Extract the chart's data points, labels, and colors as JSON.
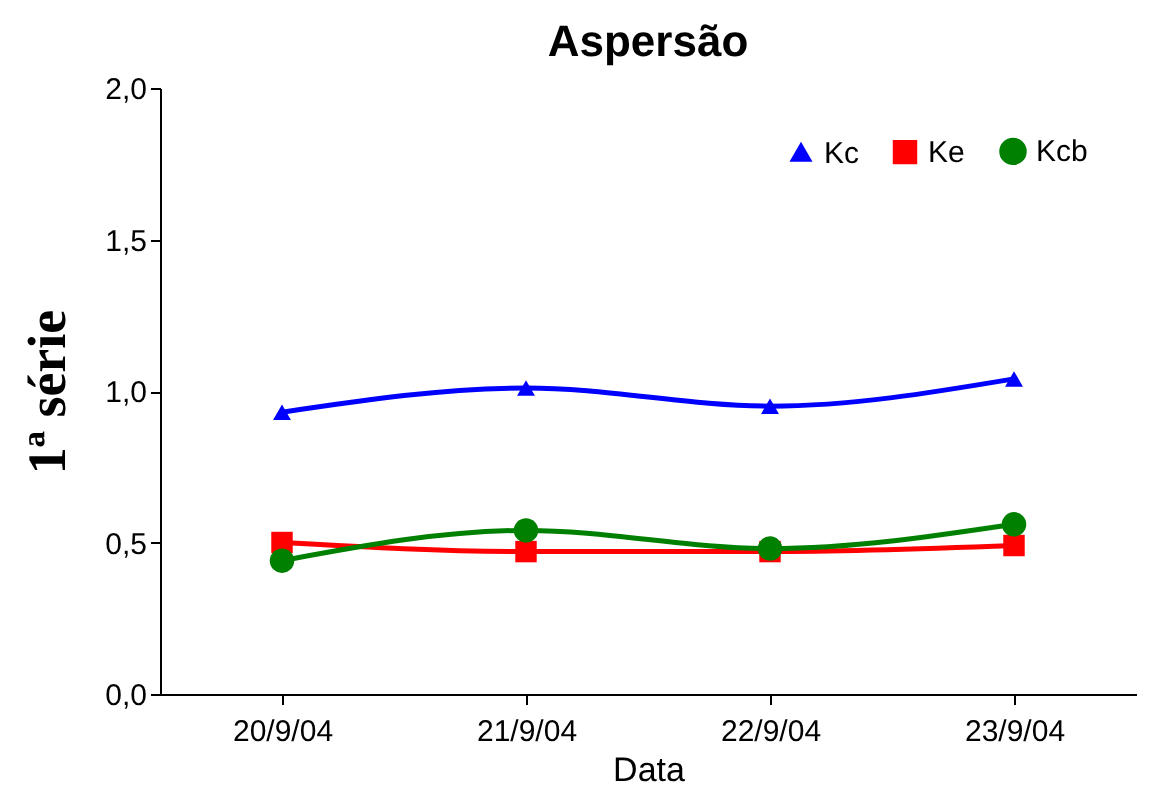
{
  "chart_data": {
    "type": "line",
    "title": "Aspersão",
    "xlabel": "Data",
    "ylabel": "1ª série",
    "categories": [
      "20/9/04",
      "21/9/04",
      "22/9/04",
      "23/9/04"
    ],
    "series": [
      {
        "name": "Kc",
        "color": "#0000ff",
        "marker": "triangle",
        "values": [
          0.93,
          1.01,
          0.95,
          1.04
        ]
      },
      {
        "name": "Ke",
        "color": "#ff0000",
        "marker": "square",
        "values": [
          0.5,
          0.47,
          0.47,
          0.49
        ]
      },
      {
        "name": "Kcb",
        "color": "#008000",
        "marker": "circle",
        "values": [
          0.44,
          0.54,
          0.48,
          0.56
        ]
      }
    ],
    "ylim": [
      0,
      2
    ],
    "yticks": [
      {
        "value": 0,
        "label": "0,0"
      },
      {
        "value": 0.5,
        "label": "0,5"
      },
      {
        "value": 1,
        "label": "1,0"
      },
      {
        "value": 1.5,
        "label": "1,5"
      },
      {
        "value": 2,
        "label": "2,0"
      }
    ],
    "grid": false,
    "legend": "top right",
    "line_style": "solid"
  }
}
